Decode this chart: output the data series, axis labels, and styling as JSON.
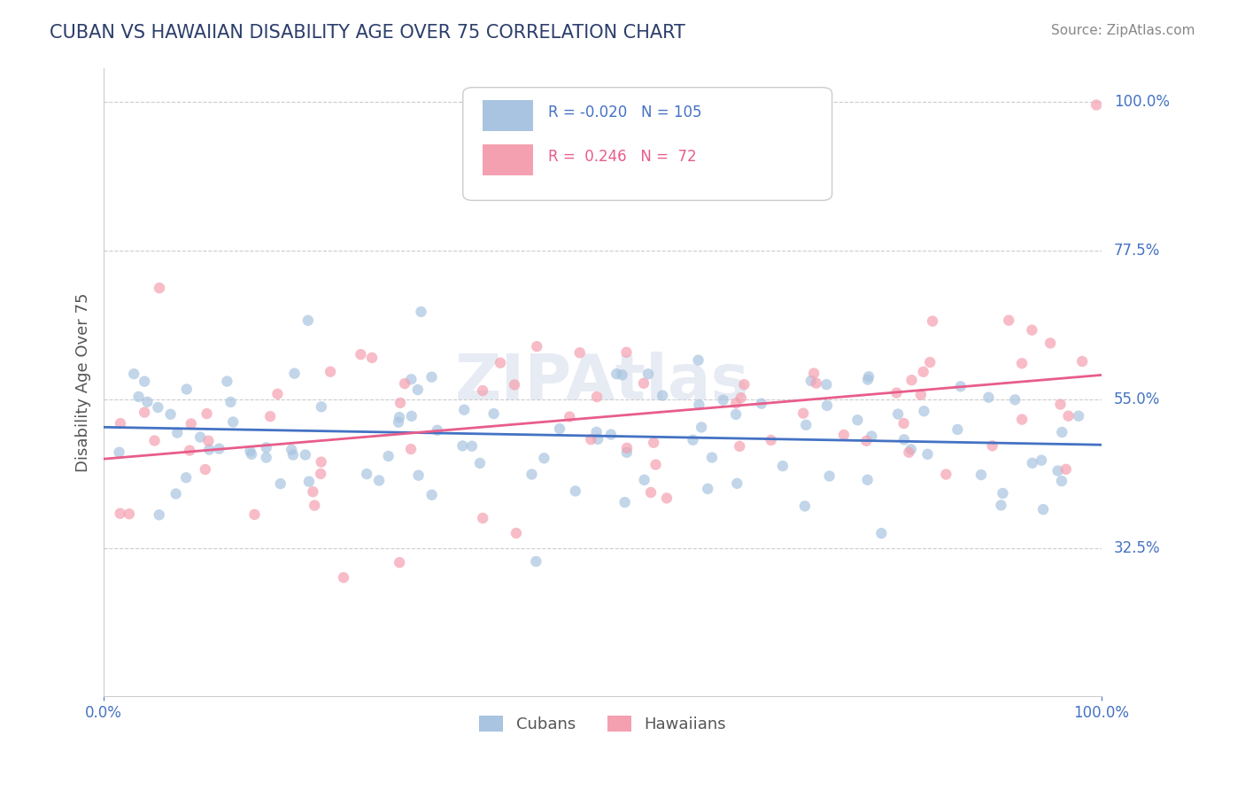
{
  "title": "CUBAN VS HAWAIIAN DISABILITY AGE OVER 75 CORRELATION CHART",
  "source_text": "Source: ZipAtlas.com",
  "ylabel": "Disability Age Over 75",
  "x_min": 0.0,
  "x_max": 1.0,
  "y_min": 0.1,
  "y_max": 1.05,
  "y_tick_positions": [
    0.325,
    0.55,
    0.775,
    1.0
  ],
  "y_tick_labels": [
    "32.5%",
    "55.0%",
    "77.5%",
    "100.0%"
  ],
  "cubans_R": -0.02,
  "cubans_N": 105,
  "hawaiians_R": 0.246,
  "hawaiians_N": 72,
  "cubans_color": "#a8c4e0",
  "hawaiians_color": "#f4a0b0",
  "cubans_line_color": "#4472c4",
  "hawaiians_line_color": "#e85d8a",
  "legend_cubans_label": "Cubans",
  "legend_hawaiians_label": "Hawaiians",
  "watermark": "ZIPAtlas",
  "background_color": "#ffffff",
  "grid_color": "#cccccc",
  "title_color": "#2c3e6b",
  "label_color": "#4472c4",
  "ylabel_color": "#555555"
}
